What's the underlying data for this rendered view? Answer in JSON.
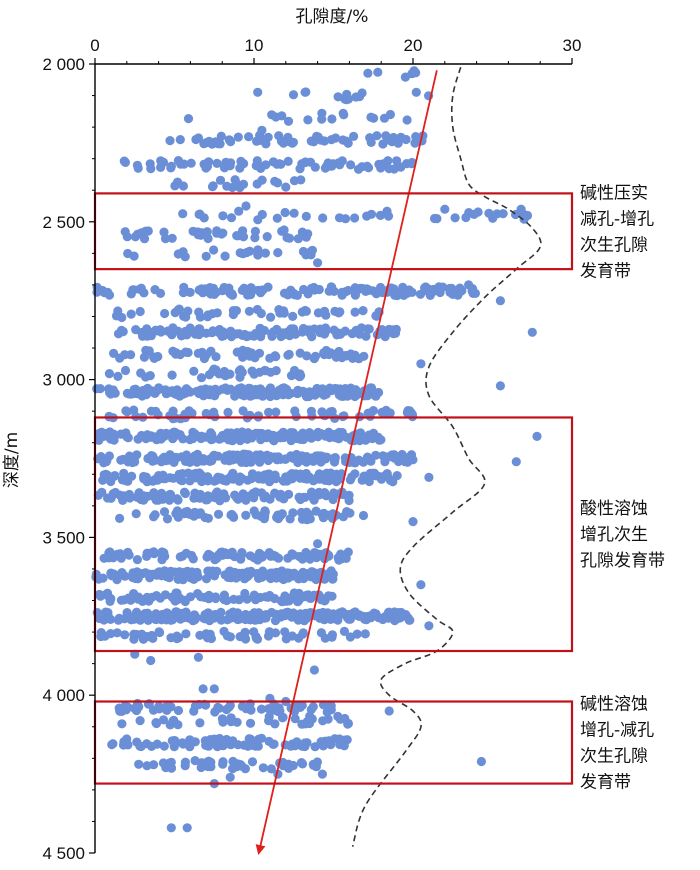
{
  "chart_data": {
    "type": "scatter",
    "title": "",
    "xlabel": "孔隙度/%",
    "ylabel": "深度/m",
    "x_axis_position": "top",
    "y_axis_inverted": true,
    "xlim": [
      0,
      30
    ],
    "ylim": [
      2000,
      4500
    ],
    "x_ticks": [
      0,
      10,
      20,
      30
    ],
    "x_tick_labels": [
      "0",
      "10",
      "20",
      "30"
    ],
    "y_ticks": [
      2000,
      2500,
      3000,
      3500,
      4000,
      4500
    ],
    "y_tick_labels": [
      "2 000",
      "2 500",
      "3 000",
      "3 500",
      "4 000",
      "4 500"
    ],
    "grid": false,
    "colors": {
      "points": "#6b8fd6",
      "trend": "#e0201c",
      "envelope": "#333333",
      "zone_box": "#c0111a"
    },
    "scatter_bands": [
      {
        "depth": 2030,
        "xmin": 16,
        "xmax": 22,
        "count": 6
      },
      {
        "depth": 2100,
        "xmin": 8,
        "xmax": 21,
        "count": 14
      },
      {
        "depth": 2170,
        "xmin": 4,
        "xmax": 20,
        "count": 16
      },
      {
        "depth": 2240,
        "xmin": 4,
        "xmax": 21,
        "count": 55
      },
      {
        "depth": 2320,
        "xmin": 1,
        "xmax": 20,
        "count": 70
      },
      {
        "depth": 2380,
        "xmin": 5,
        "xmax": 13,
        "count": 18
      },
      {
        "depth": 2480,
        "xmin": 5,
        "xmax": 27,
        "count": 35
      },
      {
        "depth": 2540,
        "xmin": 1,
        "xmax": 14,
        "count": 38
      },
      {
        "depth": 2600,
        "xmin": 1,
        "xmax": 14,
        "count": 22
      },
      {
        "depth": 2720,
        "xmin": 0,
        "xmax": 24,
        "count": 130
      },
      {
        "depth": 2790,
        "xmin": 1,
        "xmax": 18,
        "count": 45
      },
      {
        "depth": 2850,
        "xmin": 1,
        "xmax": 19,
        "count": 110
      },
      {
        "depth": 2920,
        "xmin": 1,
        "xmax": 17,
        "count": 60
      },
      {
        "depth": 2980,
        "xmin": 0,
        "xmax": 13,
        "count": 35
      },
      {
        "depth": 3040,
        "xmin": 0,
        "xmax": 18,
        "count": 190
      },
      {
        "depth": 3110,
        "xmin": 0,
        "xmax": 20,
        "count": 60
      },
      {
        "depth": 3180,
        "xmin": 0,
        "xmax": 18,
        "count": 170
      },
      {
        "depth": 3250,
        "xmin": 0,
        "xmax": 20,
        "count": 160
      },
      {
        "depth": 3310,
        "xmin": 0,
        "xmax": 19,
        "count": 140
      },
      {
        "depth": 3370,
        "xmin": 0,
        "xmax": 16,
        "count": 110
      },
      {
        "depth": 3430,
        "xmin": 1,
        "xmax": 17,
        "count": 60
      },
      {
        "depth": 3560,
        "xmin": 0,
        "xmax": 16,
        "count": 85
      },
      {
        "depth": 3620,
        "xmin": 0,
        "xmax": 15,
        "count": 150
      },
      {
        "depth": 3690,
        "xmin": 0,
        "xmax": 15,
        "count": 85
      },
      {
        "depth": 3750,
        "xmin": 0,
        "xmax": 20,
        "count": 220
      },
      {
        "depth": 3810,
        "xmin": 0,
        "xmax": 17,
        "count": 55
      },
      {
        "depth": 4040,
        "xmin": 1,
        "xmax": 15,
        "count": 55
      },
      {
        "depth": 4080,
        "xmin": 1,
        "xmax": 16,
        "count": 35
      },
      {
        "depth": 4150,
        "xmin": 1,
        "xmax": 16,
        "count": 85
      },
      {
        "depth": 4220,
        "xmin": 2,
        "xmax": 14,
        "count": 45
      }
    ],
    "scatter_points": [
      {
        "x": 27.2,
        "y": 2480
      },
      {
        "x": 26.8,
        "y": 2460
      },
      {
        "x": 25.5,
        "y": 2750
      },
      {
        "x": 27.5,
        "y": 2850
      },
      {
        "x": 25.5,
        "y": 3020
      },
      {
        "x": 27.8,
        "y": 3180
      },
      {
        "x": 26.5,
        "y": 3260
      },
      {
        "x": 24.3,
        "y": 4210
      },
      {
        "x": 23.0,
        "y": 2720
      },
      {
        "x": 23.5,
        "y": 2700
      },
      {
        "x": 22.0,
        "y": 2460
      },
      {
        "x": 21.5,
        "y": 2490
      },
      {
        "x": 22.5,
        "y": 2730
      },
      {
        "x": 20.5,
        "y": 2950
      },
      {
        "x": 21.0,
        "y": 3310
      },
      {
        "x": 21.0,
        "y": 3780
      },
      {
        "x": 20.5,
        "y": 3650
      },
      {
        "x": 20.0,
        "y": 3450
      },
      {
        "x": 18.5,
        "y": 4050
      },
      {
        "x": 19.5,
        "y": 3260
      },
      {
        "x": 4.8,
        "y": 4420
      },
      {
        "x": 5.8,
        "y": 4420
      },
      {
        "x": 6.5,
        "y": 3880
      },
      {
        "x": 6.8,
        "y": 3980
      },
      {
        "x": 7.5,
        "y": 3980
      },
      {
        "x": 2.5,
        "y": 3870
      },
      {
        "x": 3.5,
        "y": 3890
      },
      {
        "x": 7.5,
        "y": 4280
      },
      {
        "x": 8.5,
        "y": 4260
      },
      {
        "x": 11.5,
        "y": 4250
      },
      {
        "x": 14.3,
        "y": 4250
      },
      {
        "x": 13.8,
        "y": 3920
      },
      {
        "x": 14.0,
        "y": 3520
      },
      {
        "x": 12.0,
        "y": 4020
      },
      {
        "x": 11.0,
        "y": 4010
      },
      {
        "x": 9.5,
        "y": 2450
      },
      {
        "x": 12.0,
        "y": 2390
      },
      {
        "x": 14.0,
        "y": 2630
      },
      {
        "x": 10.5,
        "y": 2210
      }
    ],
    "trend_line": {
      "x": [
        21.5,
        10.3
      ],
      "y": [
        2020,
        4500
      ]
    },
    "envelope": {
      "x": [
        23.0,
        22.5,
        22.5,
        23.0,
        23.5,
        24.5,
        26.0,
        27.5,
        28.0,
        26.5,
        24.5,
        22.5,
        21.0,
        21.0,
        22.5,
        23.5,
        24.5,
        22.5,
        20.0,
        19.2,
        19.8,
        21.5,
        22.5,
        21.5,
        19.5,
        18.0,
        18.5,
        20.0,
        20.5,
        19.5,
        17.0,
        16.2
      ],
      "y": [
        2010,
        2100,
        2200,
        2300,
        2380,
        2420,
        2460,
        2520,
        2580,
        2650,
        2740,
        2850,
        2960,
        3050,
        3150,
        3250,
        3330,
        3420,
        3530,
        3600,
        3680,
        3760,
        3800,
        3860,
        3900,
        3950,
        4000,
        4050,
        4100,
        4180,
        4350,
        4480
      ]
    },
    "zones": [
      {
        "label_lines": [
          "碱性压实",
          "减孔-增孔",
          "次生孔隙",
          "发育带"
        ],
        "depth_top": 2410,
        "depth_bottom": 2650
      },
      {
        "label_lines": [
          "酸性溶蚀",
          "增孔次生",
          "孔隙发育带"
        ],
        "depth_top": 3120,
        "depth_bottom": 3860
      },
      {
        "label_lines": [
          "碱性溶蚀",
          "增孔-减孔",
          "次生孔隙",
          "发育带"
        ],
        "depth_top": 4020,
        "depth_bottom": 4280
      }
    ]
  }
}
